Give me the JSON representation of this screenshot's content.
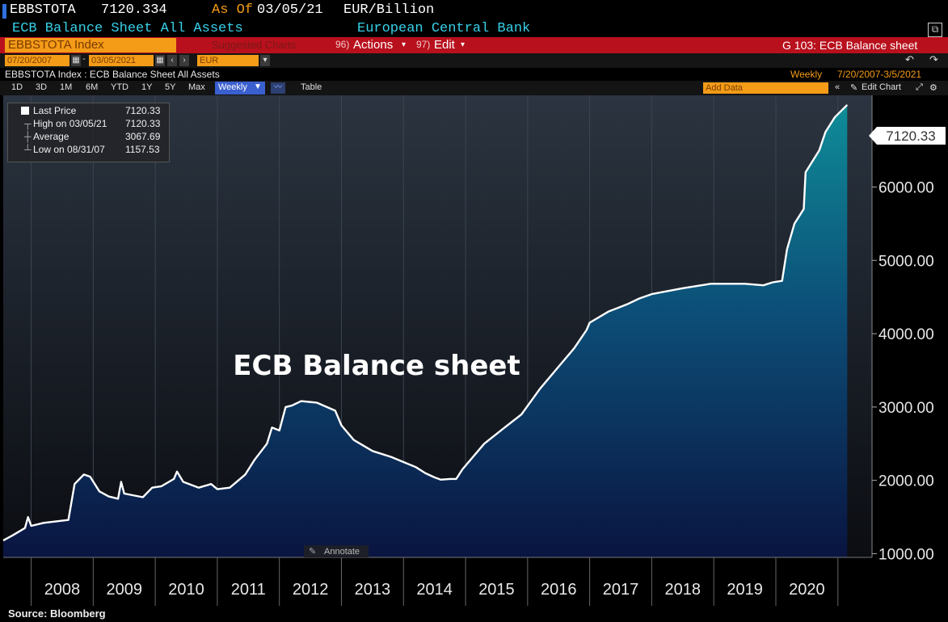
{
  "header": {
    "ticker": "EBBSTOTA",
    "price": "7120.334",
    "as_of_label": "As Of",
    "as_of_date": "03/05/21",
    "unit": "EUR/Billion",
    "description": "ECB Balance Sheet All Assets",
    "source_name": "European Central Bank"
  },
  "toolbar": {
    "security": "EBBSTOTA Index",
    "related": "Suggested Charts",
    "actions_num": "96)",
    "actions_label": "Actions",
    "edit_num": "97)",
    "edit_label": "Edit",
    "page_title": "G 103: ECB Balance sheet"
  },
  "range": {
    "start": "07/20/2007",
    "end": "03/05/2021",
    "currency": "EUR"
  },
  "subheader": {
    "title": "EBBSTOTA Index : ECB Balance Sheet All Assets",
    "frequency": "Weekly",
    "period": "7/20/2007-3/5/2021"
  },
  "periods": [
    "1D",
    "3D",
    "1M",
    "6M",
    "YTD",
    "1Y",
    "5Y",
    "Max"
  ],
  "controls": {
    "frequency_select": "Weekly",
    "table": "Table",
    "add_data": "Add Data",
    "edit_chart": "Edit Chart",
    "annotate": "Annotate"
  },
  "legend": {
    "last_price_label": "Last Price",
    "last_price": "7120.33",
    "high_label": "High on 03/05/21",
    "high": "7120.33",
    "average_label": "Average",
    "average": "3067.69",
    "low_label": "Low on 08/31/07",
    "low": "1157.53"
  },
  "chart_data": {
    "type": "area",
    "title": "ECB Balance sheet",
    "ylim": [
      950,
      7250
    ],
    "yticks": [
      1000,
      2000,
      3000,
      4000,
      5000,
      6000
    ],
    "ytick_labels": [
      "1000.00",
      "2000.00",
      "3000.00",
      "4000.00",
      "5000.00",
      "6000.00"
    ],
    "last_value_label": "7120.33",
    "xlim": [
      2007.55,
      2021.55
    ],
    "x_labels": [
      "2008",
      "2009",
      "2010",
      "2011",
      "2012",
      "2013",
      "2014",
      "2015",
      "2016",
      "2017",
      "2018",
      "2019",
      "2020"
    ],
    "x": [
      2007.55,
      2007.7,
      2007.9,
      2007.95,
      2008.0,
      2008.2,
      2008.5,
      2008.6,
      2008.7,
      2008.85,
      2008.95,
      2009.1,
      2009.25,
      2009.4,
      2009.45,
      2009.5,
      2009.8,
      2009.95,
      2010.1,
      2010.3,
      2010.35,
      2010.45,
      2010.7,
      2010.9,
      2011.0,
      2011.2,
      2011.45,
      2011.6,
      2011.8,
      2011.88,
      2012.0,
      2012.1,
      2012.2,
      2012.35,
      2012.6,
      2012.9,
      2013.0,
      2013.2,
      2013.5,
      2013.8,
      2014.0,
      2014.2,
      2014.35,
      2014.5,
      2014.6,
      2014.75,
      2014.85,
      2014.95,
      2015.3,
      2015.6,
      2015.9,
      2016.2,
      2016.5,
      2016.75,
      2016.95,
      2017.0,
      2017.3,
      2017.6,
      2017.8,
      2018.0,
      2018.5,
      2018.95,
      2019.5,
      2019.8,
      2019.95,
      2020.1,
      2020.18,
      2020.3,
      2020.45,
      2020.48,
      2020.7,
      2020.8,
      2020.95,
      2021.15
    ],
    "y": [
      1180,
      1250,
      1350,
      1500,
      1380,
      1420,
      1450,
      1460,
      1950,
      2080,
      2050,
      1850,
      1780,
      1750,
      1980,
      1820,
      1770,
      1900,
      1920,
      2020,
      2120,
      1980,
      1900,
      1950,
      1880,
      1900,
      2080,
      2280,
      2500,
      2720,
      2680,
      3000,
      3020,
      3080,
      3060,
      2950,
      2750,
      2550,
      2400,
      2320,
      2250,
      2180,
      2100,
      2040,
      2010,
      2020,
      2020,
      2150,
      2500,
      2700,
      2900,
      3250,
      3550,
      3800,
      4050,
      4150,
      4300,
      4400,
      4480,
      4540,
      4620,
      4680,
      4680,
      4660,
      4700,
      4720,
      5150,
      5500,
      5700,
      6200,
      6500,
      6750,
      6950,
      7120
    ]
  },
  "source_note": "Source: Bloomberg"
}
